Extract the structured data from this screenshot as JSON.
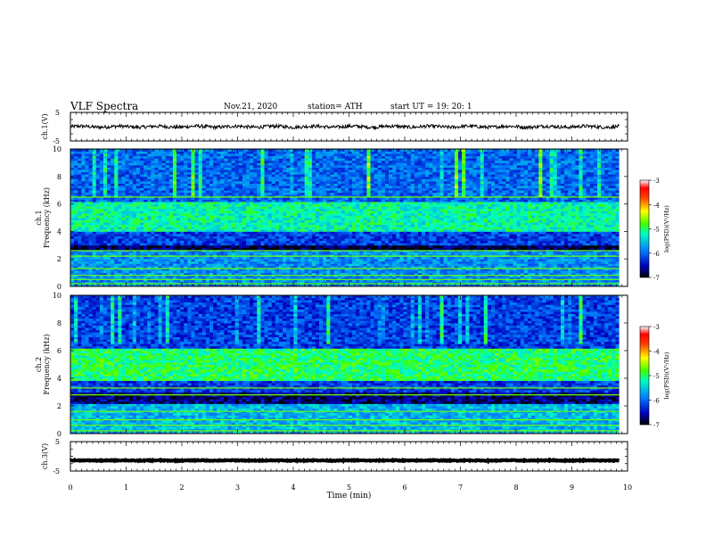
{
  "header": {
    "title": "VLF Spectra",
    "date": "Nov.21, 2020",
    "station": "station= ATH",
    "start": "start  UT  =    19: 20: 1"
  },
  "colors": {
    "colormap": [
      "#000080",
      "#0000ff",
      "#00a0ff",
      "#00ffa0",
      "#40ff00",
      "#c0ff00",
      "#ff8000",
      "#ff0000",
      "#ffffff"
    ],
    "spectro_bg": "#1020c0"
  },
  "chart_data": [
    {
      "type": "line",
      "name": "ch1-waveform",
      "ylabel": "ch.1(V)",
      "ylim": [
        -5,
        5
      ],
      "yticks": [
        "5",
        "-5"
      ],
      "xlim": [
        0,
        10
      ],
      "mean_value": 0,
      "noise_amplitude": 0.6
    },
    {
      "type": "heatmap",
      "name": "ch1-spectrogram",
      "ylabel": "Frequency (kHz)",
      "channel_label": "ch.1",
      "ylim": [
        0,
        10
      ],
      "yticks": [
        "0",
        "2",
        "4",
        "6",
        "8",
        "10"
      ],
      "xlim": [
        0,
        10
      ],
      "colorbar": {
        "label": "log(PSD)(V²/Hz)",
        "ticks": [
          "-3",
          "-4",
          "-5",
          "-6",
          "-7"
        ],
        "range": [
          -7,
          -3
        ]
      },
      "bands": [
        {
          "from": 4.0,
          "to": 6.2,
          "level": 0.45
        },
        {
          "from": 6.2,
          "to": 10,
          "level": 0.25
        },
        {
          "from": 2.6,
          "to": 3.0,
          "level": 0.05
        },
        {
          "from": 0.0,
          "to": 2.6,
          "level": 0.3
        }
      ],
      "lines_khz": [
        6.5,
        2.6,
        2.2,
        1.3,
        0.8,
        0.5,
        0.2
      ]
    },
    {
      "type": "heatmap",
      "name": "ch2-spectrogram",
      "ylabel": "Frequency (kHz)",
      "channel_label": "ch.2",
      "ylim": [
        0,
        10
      ],
      "yticks": [
        "0",
        "2",
        "4",
        "6",
        "8",
        "10"
      ],
      "xlim": [
        0,
        10
      ],
      "colorbar": {
        "label": "log(PSD)(V²/Hz)",
        "ticks": [
          "-3",
          "-4",
          "-5",
          "-6",
          "-7"
        ],
        "range": [
          -7,
          -3
        ]
      },
      "bands": [
        {
          "from": 3.8,
          "to": 6.2,
          "level": 0.5
        },
        {
          "from": 6.2,
          "to": 10,
          "level": 0.2
        },
        {
          "from": 2.2,
          "to": 3.0,
          "level": 0.08
        },
        {
          "from": 0.0,
          "to": 2.2,
          "level": 0.35
        }
      ],
      "lines_khz": [
        3.3,
        2.8,
        1.6,
        1.0,
        0.6,
        0.2
      ]
    },
    {
      "type": "line",
      "name": "ch3-waveform",
      "ylabel": "ch.3(V)",
      "ylim": [
        -5,
        5
      ],
      "yticks": [
        "5",
        "-5"
      ],
      "xlim": [
        0,
        10
      ],
      "mean_value": -1.4,
      "noise_amplitude": 0.15
    }
  ],
  "xaxis": {
    "label": "Time (min)",
    "ticks": [
      "0",
      "1",
      "2",
      "3",
      "4",
      "5",
      "6",
      "7",
      "8",
      "9",
      "10"
    ],
    "data_end_min": 9.85
  }
}
